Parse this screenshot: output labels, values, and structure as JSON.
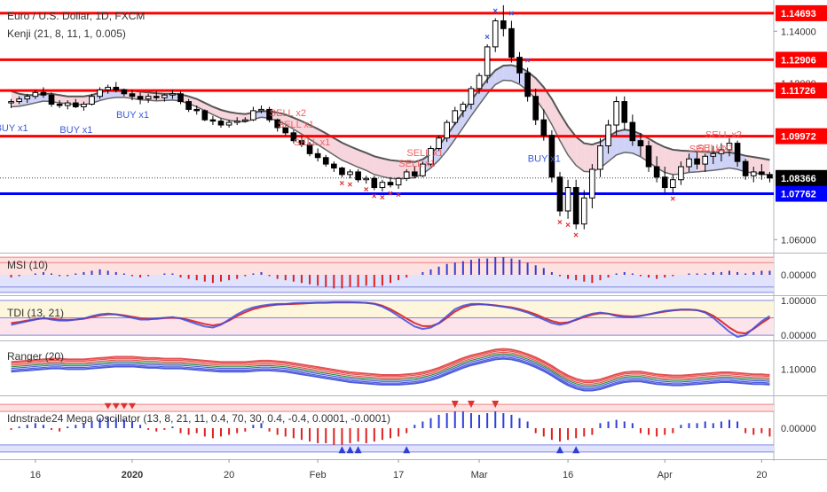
{
  "header": {
    "symbol": "Euro / U.S. Dollar, 1D, FXCM",
    "study": "Kenji (21, 8, 11, 1, 0.005)"
  },
  "colors": {
    "up": "#ffffff",
    "down": "#000000",
    "red_line": "#ff0000",
    "blue_line": "#0000ff",
    "buy_text": "#3b5bdb",
    "sell_text": "#f06060"
  },
  "price_axis": {
    "ticks": [
      {
        "value": 1.14,
        "label": "1.14000"
      },
      {
        "value": 1.12,
        "label": "1.12000"
      },
      {
        "value": 1.06,
        "label": "1.06000"
      }
    ],
    "levels": [
      {
        "value": 1.14693,
        "label": "1.14693",
        "color": "red"
      },
      {
        "value": 1.12906,
        "label": "1.12906",
        "color": "red"
      },
      {
        "value": 1.11726,
        "label": "1.11726",
        "color": "red"
      },
      {
        "value": 1.09972,
        "label": "1.09972",
        "color": "red"
      },
      {
        "value": 1.07762,
        "label": "1.07762",
        "color": "blue"
      }
    ],
    "last_price": {
      "value": 1.08366,
      "label": "1.08366"
    }
  },
  "date_axis": [
    "16",
    "2020",
    "20",
    "Feb",
    "17",
    "Mar",
    "16",
    "Apr",
    "20"
  ],
  "signals": [
    {
      "text": "BUY x1",
      "type": "buy"
    },
    {
      "text": "BUY x1",
      "type": "buy"
    },
    {
      "text": "BUY x1",
      "type": "buy"
    },
    {
      "text": "BUY x1",
      "type": "buy"
    },
    {
      "text": "SELL x2",
      "type": "sell"
    },
    {
      "text": "SELL x1",
      "type": "sell"
    },
    {
      "text": "SELL x1",
      "type": "sell"
    },
    {
      "text": "SELL x1",
      "type": "sell"
    },
    {
      "text": "SELL x1",
      "type": "sell"
    },
    {
      "text": "SELL x1",
      "type": "sell"
    },
    {
      "text": "SELL x1",
      "type": "sell"
    },
    {
      "text": "SELL x2",
      "type": "sell"
    }
  ],
  "panels": [
    {
      "name": "MSI (10)",
      "ticks": [
        "0.00000"
      ]
    },
    {
      "name": "TDI (13, 21)",
      "ticks": [
        "1.00000",
        "0.00000"
      ]
    },
    {
      "name": "Ranger (20)",
      "ticks": [
        "1.10000"
      ]
    },
    {
      "name": "Idnstrade24 Mega Oscillator (13, 8, 21, 11, 0.4, 70, 30, 0.4, -0.4, 0.0001, -0.0001)",
      "ticks": [
        "0.00000"
      ]
    }
  ],
  "chart_data": {
    "type": "candlestick",
    "symbol": "Euro / U.S. Dollar",
    "timeframe": "1D",
    "ylim": [
      1.055,
      1.152
    ],
    "candles": [
      [
        1.1125,
        1.114,
        1.1105,
        1.113
      ],
      [
        1.113,
        1.115,
        1.112,
        1.114
      ],
      [
        1.114,
        1.116,
        1.1125,
        1.115
      ],
      [
        1.115,
        1.1175,
        1.114,
        1.1165
      ],
      [
        1.1165,
        1.1185,
        1.1145,
        1.1155
      ],
      [
        1.1155,
        1.1165,
        1.111,
        1.112
      ],
      [
        1.112,
        1.1135,
        1.1105,
        1.1115
      ],
      [
        1.1115,
        1.1135,
        1.11,
        1.1125
      ],
      [
        1.1125,
        1.114,
        1.1105,
        1.111
      ],
      [
        1.111,
        1.113,
        1.1095,
        1.112
      ],
      [
        1.112,
        1.116,
        1.1115,
        1.115
      ],
      [
        1.115,
        1.1185,
        1.114,
        1.1175
      ],
      [
        1.1175,
        1.1195,
        1.116,
        1.1185
      ],
      [
        1.1185,
        1.1205,
        1.1165,
        1.1175
      ],
      [
        1.1175,
        1.118,
        1.115,
        1.116
      ],
      [
        1.116,
        1.1175,
        1.1135,
        1.115
      ],
      [
        1.115,
        1.1165,
        1.112,
        1.114
      ],
      [
        1.114,
        1.116,
        1.1125,
        1.115
      ],
      [
        1.115,
        1.117,
        1.1135,
        1.1145
      ],
      [
        1.1145,
        1.116,
        1.113,
        1.1155
      ],
      [
        1.1155,
        1.1175,
        1.114,
        1.116
      ],
      [
        1.116,
        1.117,
        1.112,
        1.113
      ],
      [
        1.113,
        1.114,
        1.109,
        1.11
      ],
      [
        1.11,
        1.1115,
        1.108,
        1.1095
      ],
      [
        1.1095,
        1.11,
        1.1055,
        1.106
      ],
      [
        1.106,
        1.1075,
        1.104,
        1.1055
      ],
      [
        1.1055,
        1.1065,
        1.103,
        1.104
      ],
      [
        1.104,
        1.106,
        1.103,
        1.105
      ],
      [
        1.105,
        1.107,
        1.104,
        1.1055
      ],
      [
        1.1055,
        1.107,
        1.105,
        1.106
      ],
      [
        1.106,
        1.111,
        1.1055,
        1.1095
      ],
      [
        1.1095,
        1.1115,
        1.1085,
        1.11
      ],
      [
        1.11,
        1.111,
        1.105,
        1.106
      ],
      [
        1.106,
        1.1065,
        1.1015,
        1.103
      ],
      [
        1.103,
        1.104,
        1.1,
        1.101
      ],
      [
        1.101,
        1.102,
        1.097,
        1.098
      ],
      [
        1.098,
        1.0995,
        1.0955,
        1.0965
      ],
      [
        1.0965,
        1.0975,
        1.092,
        1.093
      ],
      [
        1.093,
        1.095,
        1.09,
        1.0915
      ],
      [
        1.0915,
        1.0925,
        1.088,
        1.089
      ],
      [
        1.089,
        1.09,
        1.086,
        1.0875
      ],
      [
        1.0875,
        1.088,
        1.084,
        1.085
      ],
      [
        1.085,
        1.087,
        1.0835,
        1.086
      ],
      [
        1.086,
        1.087,
        1.082,
        1.083
      ],
      [
        1.083,
        1.0845,
        1.0815,
        1.0835
      ],
      [
        1.0835,
        1.0845,
        1.079,
        1.08
      ],
      [
        1.08,
        1.083,
        1.0785,
        1.082
      ],
      [
        1.082,
        1.084,
        1.08,
        1.081
      ],
      [
        1.081,
        1.084,
        1.0795,
        1.0835
      ],
      [
        1.0835,
        1.087,
        1.0825,
        1.086
      ],
      [
        1.086,
        1.088,
        1.0835,
        1.0845
      ],
      [
        1.0845,
        1.09,
        1.084,
        1.089
      ],
      [
        1.089,
        1.096,
        1.088,
        1.095
      ],
      [
        1.095,
        1.1,
        1.094,
        1.099
      ],
      [
        1.099,
        1.106,
        1.0975,
        1.105
      ],
      [
        1.105,
        1.111,
        1.104,
        1.1095
      ],
      [
        1.1095,
        1.113,
        1.107,
        1.112
      ],
      [
        1.112,
        1.119,
        1.11,
        1.118
      ],
      [
        1.118,
        1.124,
        1.116,
        1.123
      ],
      [
        1.123,
        1.135,
        1.12,
        1.134
      ],
      [
        1.134,
        1.145,
        1.132,
        1.144
      ],
      [
        1.144,
        1.15,
        1.138,
        1.141
      ],
      [
        1.141,
        1.144,
        1.128,
        1.13
      ],
      [
        1.13,
        1.132,
        1.12,
        1.124
      ],
      [
        1.124,
        1.126,
        1.113,
        1.115
      ],
      [
        1.115,
        1.118,
        1.104,
        1.106
      ],
      [
        1.106,
        1.11,
        1.098,
        1.1
      ],
      [
        1.1,
        1.102,
        1.082,
        1.084
      ],
      [
        1.084,
        1.086,
        1.069,
        1.071
      ],
      [
        1.071,
        1.083,
        1.068,
        1.08
      ],
      [
        1.08,
        1.083,
        1.064,
        1.066
      ],
      [
        1.066,
        1.079,
        1.064,
        1.076
      ],
      [
        1.076,
        1.089,
        1.072,
        1.087
      ],
      [
        1.087,
        1.099,
        1.084,
        1.096
      ],
      [
        1.096,
        1.106,
        1.093,
        1.104
      ],
      [
        1.104,
        1.115,
        1.1,
        1.113
      ],
      [
        1.113,
        1.115,
        1.102,
        1.105
      ],
      [
        1.105,
        1.108,
        1.096,
        1.098
      ],
      [
        1.098,
        1.101,
        1.092,
        1.096
      ],
      [
        1.096,
        1.098,
        1.086,
        1.088
      ],
      [
        1.088,
        1.092,
        1.082,
        1.084
      ],
      [
        1.084,
        1.088,
        1.078,
        1.08
      ],
      [
        1.08,
        1.085,
        1.078,
        1.083
      ],
      [
        1.083,
        1.09,
        1.081,
        1.088
      ],
      [
        1.088,
        1.093,
        1.086,
        1.091
      ],
      [
        1.091,
        1.094,
        1.087,
        1.089
      ],
      [
        1.089,
        1.093,
        1.086,
        1.092
      ],
      [
        1.092,
        1.096,
        1.089,
        1.093
      ],
      [
        1.093,
        1.097,
        1.09,
        1.0945
      ],
      [
        1.0945,
        1.099,
        1.092,
        1.097
      ],
      [
        1.097,
        1.098,
        1.088,
        1.09
      ],
      [
        1.09,
        1.091,
        1.083,
        1.0845
      ],
      [
        1.0845,
        1.088,
        1.082,
        1.086
      ],
      [
        1.086,
        1.089,
        1.083,
        1.085
      ],
      [
        1.085,
        1.086,
        1.082,
        1.08366
      ]
    ],
    "kenji_upper": [
      1.117,
      1.116,
      1.1155,
      1.1155,
      1.116,
      1.116,
      1.1155,
      1.115,
      1.115,
      1.115,
      1.1155,
      1.1165,
      1.1172,
      1.1175,
      1.1175,
      1.1172,
      1.1168,
      1.1165,
      1.1162,
      1.116,
      1.116,
      1.1158,
      1.115,
      1.114,
      1.1125,
      1.111,
      1.1098,
      1.109,
      1.1085,
      1.1082,
      1.1088,
      1.1093,
      1.1093,
      1.1088,
      1.108,
      1.1068,
      1.1055,
      1.104,
      1.1025,
      1.1008,
      1.099,
      1.0972,
      1.0958,
      1.0945,
      1.0933,
      1.092,
      1.0912,
      1.0905,
      1.0902,
      1.09,
      1.0898,
      1.0908,
      1.093,
      1.096,
      1.1,
      1.1045,
      1.109,
      1.1135,
      1.1175,
      1.1215,
      1.125,
      1.1268,
      1.127,
      1.1262,
      1.1245,
      1.122,
      1.1185,
      1.114,
      1.1085,
      1.1035,
      1.0995,
      1.097,
      1.0965,
      1.0975,
      1.0995,
      1.1015,
      1.1022,
      1.1018,
      1.1005,
      1.0988,
      1.097,
      1.0955,
      1.0945,
      1.0942,
      1.094,
      1.0938,
      1.0937,
      1.0935,
      1.0935,
      1.0935,
      1.093,
      1.0922,
      1.0917,
      1.0912,
      1.0906
    ],
    "kenji_lower": [
      1.111,
      1.1112,
      1.1118,
      1.1125,
      1.1132,
      1.113,
      1.1125,
      1.1122,
      1.1118,
      1.1118,
      1.1124,
      1.1134,
      1.1142,
      1.1146,
      1.1146,
      1.1142,
      1.1137,
      1.1135,
      1.1133,
      1.1134,
      1.1136,
      1.1132,
      1.1122,
      1.111,
      1.1095,
      1.108,
      1.1066,
      1.1058,
      1.1054,
      1.1052,
      1.1062,
      1.107,
      1.1066,
      1.1056,
      1.1042,
      1.1024,
      1.1005,
      1.0985,
      1.0965,
      1.0945,
      1.0925,
      1.0905,
      1.0892,
      1.0878,
      1.0866,
      1.085,
      1.0842,
      1.0835,
      1.0833,
      1.0835,
      1.0838,
      1.0852,
      1.0875,
      1.0905,
      1.0942,
      1.0985,
      1.103,
      1.1075,
      1.1118,
      1.116,
      1.1195,
      1.1212,
      1.121,
      1.1196,
      1.1172,
      1.114,
      1.1096,
      1.1042,
      1.098,
      1.0925,
      1.0885,
      1.0862,
      1.086,
      1.0875,
      1.09,
      1.0925,
      1.0935,
      1.0932,
      1.0918,
      1.0898,
      1.0876,
      1.0858,
      1.085,
      1.0852,
      1.0858,
      1.086,
      1.0863,
      1.0866,
      1.087,
      1.0875,
      1.087,
      1.086,
      1.0856,
      1.0852,
      1.0848
    ],
    "msi": [
      -0.2,
      -0.1,
      0,
      0.1,
      0.2,
      0.1,
      -0.1,
      -0.1,
      0.1,
      0.2,
      0.3,
      0.4,
      0.3,
      0.2,
      0.1,
      -0.1,
      -0.2,
      -0.1,
      0,
      0.1,
      0.1,
      -0.2,
      -0.3,
      -0.4,
      -0.5,
      -0.6,
      -0.5,
      -0.4,
      -0.3,
      -0.1,
      0.1,
      0.2,
      -0.1,
      -0.3,
      -0.4,
      -0.5,
      -0.6,
      -0.7,
      -0.8,
      -0.9,
      -1.0,
      -1.0,
      -0.9,
      -0.9,
      -0.8,
      -0.9,
      -0.8,
      -0.6,
      -0.4,
      -0.2,
      0,
      0.2,
      0.4,
      0.6,
      0.8,
      0.9,
      1.0,
      1.1,
      1.2,
      1.2,
      1.3,
      1.3,
      1.2,
      1.1,
      0.9,
      0.7,
      0.5,
      0.2,
      -0.1,
      -0.3,
      -0.4,
      -0.5,
      -0.6,
      -0.4,
      -0.2,
      0.1,
      0.2,
      0.1,
      -0.1,
      -0.2,
      -0.3,
      -0.2,
      -0.1,
      0,
      0.1,
      0.1,
      0.1,
      0.2,
      0.2,
      0.3,
      0.2,
      0.1,
      0.2,
      0.3,
      0.3
    ],
    "tdi_fast": [
      0.3,
      0.35,
      0.4,
      0.45,
      0.5,
      0.45,
      0.42,
      0.42,
      0.45,
      0.48,
      0.55,
      0.6,
      0.62,
      0.6,
      0.55,
      0.5,
      0.45,
      0.45,
      0.48,
      0.5,
      0.52,
      0.48,
      0.4,
      0.32,
      0.25,
      0.22,
      0.3,
      0.45,
      0.6,
      0.72,
      0.8,
      0.85,
      0.88,
      0.9,
      0.9,
      0.92,
      0.93,
      0.93,
      0.94,
      0.94,
      0.95,
      0.95,
      0.95,
      0.94,
      0.93,
      0.9,
      0.82,
      0.7,
      0.55,
      0.4,
      0.25,
      0.18,
      0.22,
      0.35,
      0.55,
      0.75,
      0.85,
      0.9,
      0.9,
      0.88,
      0.85,
      0.82,
      0.78,
      0.72,
      0.65,
      0.55,
      0.45,
      0.35,
      0.3,
      0.35,
      0.45,
      0.55,
      0.62,
      0.65,
      0.62,
      0.55,
      0.52,
      0.52,
      0.55,
      0.6,
      0.65,
      0.7,
      0.72,
      0.74,
      0.74,
      0.72,
      0.65,
      0.5,
      0.3,
      0.1,
      -0.05,
      0.0,
      0.2,
      0.4,
      0.55
    ],
    "tdi_slow": [
      0.35,
      0.38,
      0.42,
      0.46,
      0.48,
      0.47,
      0.45,
      0.44,
      0.45,
      0.47,
      0.52,
      0.57,
      0.6,
      0.6,
      0.57,
      0.53,
      0.49,
      0.47,
      0.47,
      0.49,
      0.5,
      0.49,
      0.44,
      0.38,
      0.32,
      0.28,
      0.32,
      0.42,
      0.55,
      0.66,
      0.75,
      0.81,
      0.85,
      0.88,
      0.89,
      0.9,
      0.91,
      0.92,
      0.93,
      0.93,
      0.94,
      0.94,
      0.94,
      0.94,
      0.93,
      0.91,
      0.85,
      0.75,
      0.62,
      0.48,
      0.35,
      0.26,
      0.26,
      0.34,
      0.5,
      0.68,
      0.8,
      0.87,
      0.89,
      0.88,
      0.86,
      0.83,
      0.8,
      0.75,
      0.68,
      0.6,
      0.5,
      0.41,
      0.35,
      0.37,
      0.44,
      0.52,
      0.59,
      0.63,
      0.62,
      0.58,
      0.55,
      0.54,
      0.56,
      0.6,
      0.64,
      0.68,
      0.71,
      0.73,
      0.73,
      0.72,
      0.67,
      0.56,
      0.4,
      0.22,
      0.08,
      0.05,
      0.18,
      0.35,
      0.5
    ],
    "ranger_mid": [
      1.104,
      1.105,
      1.106,
      1.107,
      1.108,
      1.109,
      1.109,
      1.108,
      1.108,
      1.108,
      1.109,
      1.11,
      1.111,
      1.112,
      1.112,
      1.112,
      1.111,
      1.11,
      1.11,
      1.109,
      1.109,
      1.109,
      1.108,
      1.107,
      1.106,
      1.105,
      1.104,
      1.104,
      1.104,
      1.104,
      1.105,
      1.106,
      1.106,
      1.105,
      1.104,
      1.102,
      1.1,
      1.098,
      1.096,
      1.094,
      1.092,
      1.09,
      1.088,
      1.087,
      1.086,
      1.085,
      1.084,
      1.084,
      1.084,
      1.085,
      1.086,
      1.088,
      1.091,
      1.095,
      1.1,
      1.105,
      1.11,
      1.114,
      1.117,
      1.12,
      1.123,
      1.124,
      1.123,
      1.12,
      1.116,
      1.111,
      1.105,
      1.098,
      1.09,
      1.083,
      1.078,
      1.075,
      1.075,
      1.077,
      1.081,
      1.085,
      1.088,
      1.089,
      1.089,
      1.087,
      1.085,
      1.084,
      1.083,
      1.083,
      1.084,
      1.085,
      1.086,
      1.087,
      1.088,
      1.088,
      1.087,
      1.086,
      1.085,
      1.085,
      1.084
    ],
    "mega_osc": [
      -0.1,
      0.1,
      0.2,
      0.3,
      0.2,
      -0.1,
      -0.2,
      0.1,
      0.2,
      0.3,
      0.4,
      0.6,
      0.7,
      0.6,
      0.5,
      0.4,
      0.2,
      -0.1,
      -0.2,
      -0.1,
      0.1,
      -0.3,
      -0.4,
      -0.3,
      -0.5,
      -0.6,
      -0.5,
      -0.4,
      -0.3,
      -0.2,
      0.2,
      0.3,
      -0.2,
      -0.4,
      -0.5,
      -0.6,
      -0.7,
      -0.8,
      -0.9,
      -0.9,
      -1.0,
      -1.0,
      -0.9,
      -0.8,
      -0.9,
      -0.8,
      -0.7,
      -0.6,
      -0.5,
      -0.3,
      0.2,
      0.4,
      0.6,
      0.8,
      0.9,
      1.0,
      1.0,
      0.9,
      0.8,
      0.9,
      1.0,
      0.9,
      0.8,
      0.6,
      0.4,
      -0.3,
      -0.5,
      -0.7,
      -0.8,
      -0.7,
      -0.6,
      -0.5,
      -0.4,
      0.3,
      0.4,
      0.5,
      0.4,
      0.3,
      -0.3,
      -0.4,
      -0.5,
      -0.4,
      -0.3,
      0.2,
      0.3,
      0.3,
      0.4,
      0.3,
      0.4,
      0.5,
      0.4,
      -0.3,
      -0.4,
      -0.3,
      -0.5
    ]
  }
}
